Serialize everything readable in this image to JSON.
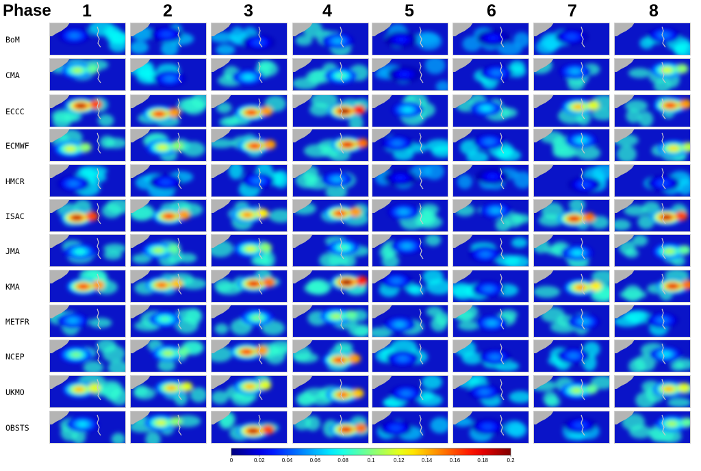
{
  "chart_data": {
    "type": "heatmap",
    "header_label": "Phase",
    "phases": [
      "1",
      "2",
      "3",
      "4",
      "5",
      "6",
      "7",
      "8"
    ],
    "models": [
      "BoM",
      "CMA",
      "ECCC",
      "ECMWF",
      "HMCR",
      "ISAC",
      "JMA",
      "KMA",
      "METFR",
      "NCEP",
      "UKMO",
      "OBSTS"
    ],
    "peak_density": [
      [
        0.05,
        0.04,
        0.04,
        0.06,
        0.03,
        0.03,
        0.04,
        0.05
      ],
      [
        0.11,
        0.05,
        0.07,
        0.09,
        0.03,
        0.05,
        0.06,
        0.12
      ],
      [
        0.19,
        0.17,
        0.17,
        0.2,
        0.07,
        0.07,
        0.14,
        0.17
      ],
      [
        0.12,
        0.12,
        0.17,
        0.18,
        0.05,
        0.05,
        0.07,
        0.13
      ],
      [
        0.05,
        0.04,
        0.05,
        0.06,
        0.03,
        0.03,
        0.04,
        0.04
      ],
      [
        0.19,
        0.17,
        0.15,
        0.17,
        0.06,
        0.06,
        0.18,
        0.19
      ],
      [
        0.08,
        0.11,
        0.12,
        0.09,
        0.06,
        0.05,
        0.07,
        0.11
      ],
      [
        0.17,
        0.16,
        0.18,
        0.2,
        0.05,
        0.05,
        0.15,
        0.18
      ],
      [
        0.06,
        0.09,
        0.1,
        0.11,
        0.06,
        0.06,
        0.06,
        0.05
      ],
      [
        0.1,
        0.11,
        0.17,
        0.17,
        0.05,
        0.05,
        0.05,
        0.07
      ],
      [
        0.14,
        0.14,
        0.14,
        0.16,
        0.05,
        0.05,
        0.11,
        0.14
      ],
      [
        0.07,
        0.12,
        0.19,
        0.18,
        0.04,
        0.04,
        0.04,
        0.11
      ]
    ],
    "colorbar": {
      "range": [
        0,
        0.2
      ],
      "ticks": [
        "0",
        "0.02",
        "0.04",
        "0.06",
        "0.08",
        "0.1",
        "0.12",
        "0.14",
        "0.16",
        "0.18",
        "0.2"
      ],
      "colormap": "jet"
    },
    "colors": {
      "ocean_background": "#0a14c8",
      "land": "#b4b4b4"
    }
  }
}
